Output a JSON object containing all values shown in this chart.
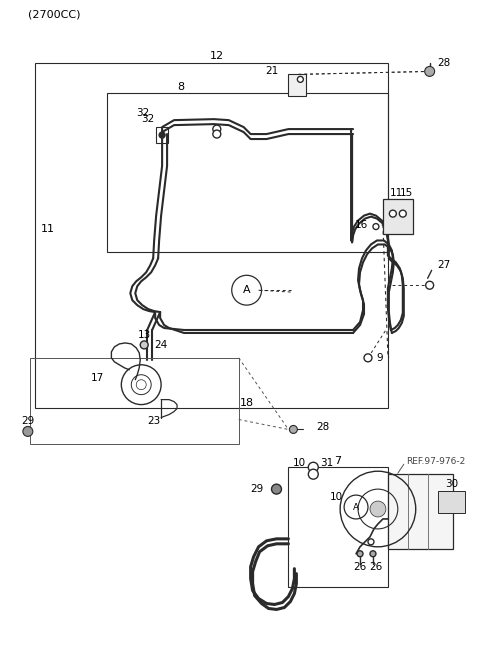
{
  "title": "(2700CC)",
  "bg_color": "#ffffff",
  "line_color": "#2a2a2a",
  "fig_width": 4.8,
  "fig_height": 6.56,
  "dpi": 100,
  "ref_text": "REF.97-976-2"
}
